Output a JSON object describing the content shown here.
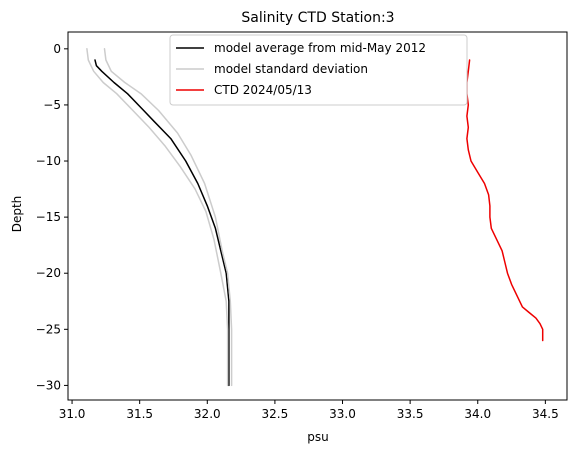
{
  "chart_data": {
    "type": "line",
    "title": "Salinity CTD Station:3",
    "xlabel": "psu",
    "ylabel": "Depth",
    "xlim": [
      30.97,
      34.66
    ],
    "ylim": [
      -31.3,
      1.5
    ],
    "xticks": [
      31.0,
      31.5,
      32.0,
      32.5,
      33.0,
      33.5,
      34.0,
      34.5
    ],
    "xtick_labels": [
      "31.0",
      "31.5",
      "32.0",
      "32.5",
      "33.0",
      "33.5",
      "34.0",
      "34.5"
    ],
    "yticks": [
      0,
      -5,
      -10,
      -15,
      -20,
      -25,
      -30
    ],
    "ytick_labels": [
      "0",
      "−5",
      "−10",
      "−15",
      "−20",
      "−25",
      "−30"
    ],
    "grid": false,
    "legend_position": "top-center",
    "series": [
      {
        "name": "model average from mid-May 2012",
        "color": "#000000",
        "x": [
          31.17,
          31.18,
          31.22,
          31.31,
          31.41,
          31.53,
          31.61,
          31.73,
          31.84,
          31.93,
          32.0,
          32.06,
          32.1,
          32.14,
          32.16,
          32.16,
          32.16
        ],
        "y": [
          -1,
          -1.5,
          -2,
          -3,
          -4,
          -5.5,
          -6.5,
          -8,
          -10,
          -12,
          -14,
          -16,
          -18,
          -20,
          -22.5,
          -25,
          -30
        ]
      },
      {
        "name": "model standard deviation",
        "color": "#cccccc",
        "x": [
          31.24,
          31.25,
          31.29,
          31.39,
          31.51,
          31.64,
          31.78,
          31.88,
          31.98,
          32.06,
          32.11,
          32.15,
          32.17,
          32.18,
          32.18
        ],
        "y": [
          0,
          -1,
          -2,
          -3,
          -4,
          -5.5,
          -7.5,
          -9.5,
          -12,
          -15,
          -18,
          -20,
          -22.5,
          -25,
          -30
        ]
      },
      {
        "name": "",
        "color": "#cccccc",
        "x": [
          31.11,
          31.12,
          31.16,
          31.23,
          31.33,
          31.45,
          31.57,
          31.69,
          31.8,
          31.91,
          31.99,
          32.05,
          32.1,
          32.14,
          32.15,
          32.15
        ],
        "y": [
          0,
          -1,
          -2,
          -3,
          -4,
          -5.5,
          -7,
          -8.7,
          -10.5,
          -12.5,
          -14.5,
          -17,
          -20,
          -22.5,
          -25,
          -30
        ]
      },
      {
        "name": "CTD 2024/05/13",
        "color": "#ee0000",
        "x": [
          33.94,
          33.93,
          33.92,
          33.92,
          33.93,
          33.92,
          33.93,
          33.92,
          33.93,
          33.95,
          34.0,
          34.05,
          34.08,
          34.09,
          34.09,
          34.1,
          34.14,
          34.18,
          34.2,
          34.22,
          34.25,
          34.29,
          34.33,
          34.38,
          34.43,
          34.46,
          34.48,
          34.48
        ],
        "y": [
          -1,
          -2,
          -3,
          -4,
          -5,
          -6,
          -7,
          -8,
          -9,
          -10,
          -11,
          -12,
          -13,
          -14,
          -15,
          -16,
          -17,
          -18,
          -19,
          -20,
          -21,
          -22,
          -23,
          -23.5,
          -24,
          -24.5,
          -25,
          -26
        ]
      }
    ]
  }
}
